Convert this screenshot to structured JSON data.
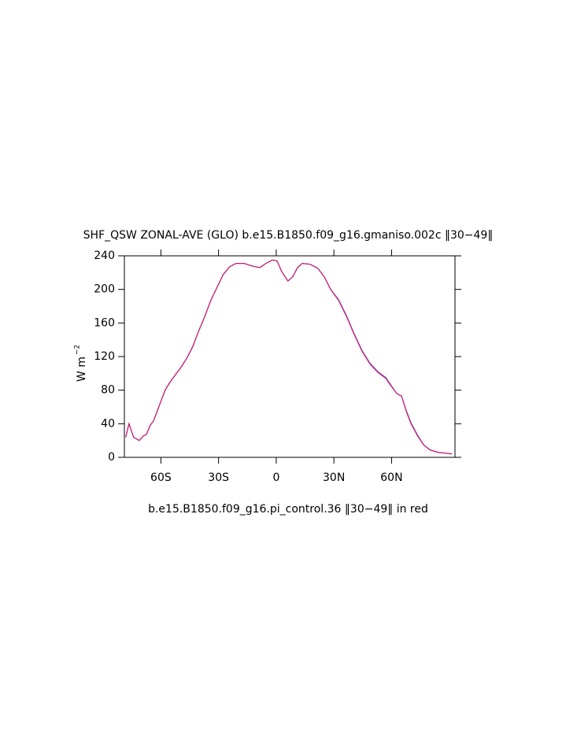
{
  "chart_data": {
    "type": "line",
    "title": "SHF_QSW ZONAL-AVE (GLO) b.e15.B1850.f09_g16.gmaniso.002c ‖30−49‖",
    "ylabel": {
      "text": "W m",
      "superscript": "−2"
    },
    "caption": "b.e15.B1850.f09_g16.pi_control.36 ‖30−49‖ in red",
    "x": [
      -78.3,
      -76.6,
      -74.2,
      -71.3,
      -68.9,
      -67.6,
      -65.6,
      -63.9,
      -61.9,
      -59.8,
      -57.8,
      -55.7,
      -52.9,
      -49.6,
      -46.3,
      -43.4,
      -40.6,
      -37.3,
      -34.0,
      -30.7,
      -27.5,
      -24.2,
      -20.9,
      -16.8,
      -12.7,
      -8.6,
      -5.3,
      -2.0,
      0.4,
      2.9,
      6.1,
      8.6,
      11.1,
      13.5,
      17.6,
      21.7,
      25.0,
      28.3,
      32.4,
      36.5,
      40.6,
      44.7,
      48.8,
      52.9,
      57.0,
      59.4,
      62.7,
      65.2,
      67.6,
      70.1,
      73.4,
      76.6,
      79.9,
      84.0,
      88.1,
      91.4
    ],
    "series": [
      {
        "color": "#3030d0",
        "values": [
          24,
          40,
          24,
          20,
          26,
          27,
          38,
          43,
          55,
          68,
          80,
          88,
          97,
          107,
          119,
          132,
          149,
          167,
          187,
          203,
          218,
          227,
          231,
          231,
          228,
          226,
          231,
          235,
          234,
          221,
          210,
          215,
          226,
          231,
          230,
          225,
          215,
          200,
          188,
          169,
          147,
          127,
          112,
          102,
          95,
          87,
          76,
          73,
          56,
          41,
          27,
          15,
          9,
          6,
          5,
          4
        ]
      },
      {
        "color": "#e0105a",
        "values": [
          24,
          40,
          24,
          20,
          26,
          27,
          38,
          43,
          55,
          68,
          80,
          88,
          97,
          107,
          119,
          132,
          149,
          167,
          187,
          203,
          218,
          227,
          231,
          231,
          228,
          226,
          231,
          235,
          234,
          221,
          210,
          215,
          226,
          231,
          230,
          225,
          215,
          200,
          187,
          168,
          146,
          126,
          111,
          101,
          94,
          86,
          76,
          73,
          55,
          40,
          26,
          15,
          9,
          6,
          5,
          4
        ]
      }
    ],
    "xlim": [
      -79,
      93
    ],
    "xticks": [
      {
        "value": -60,
        "label": "60S"
      },
      {
        "value": -30,
        "label": "30S"
      },
      0,
      {
        "value": 30,
        "label": "30N"
      },
      {
        "value": 60,
        "label": "60N"
      }
    ],
    "ylim": [
      0,
      240
    ],
    "yticks": [
      0,
      40,
      80,
      120,
      160,
      200,
      240
    ]
  }
}
